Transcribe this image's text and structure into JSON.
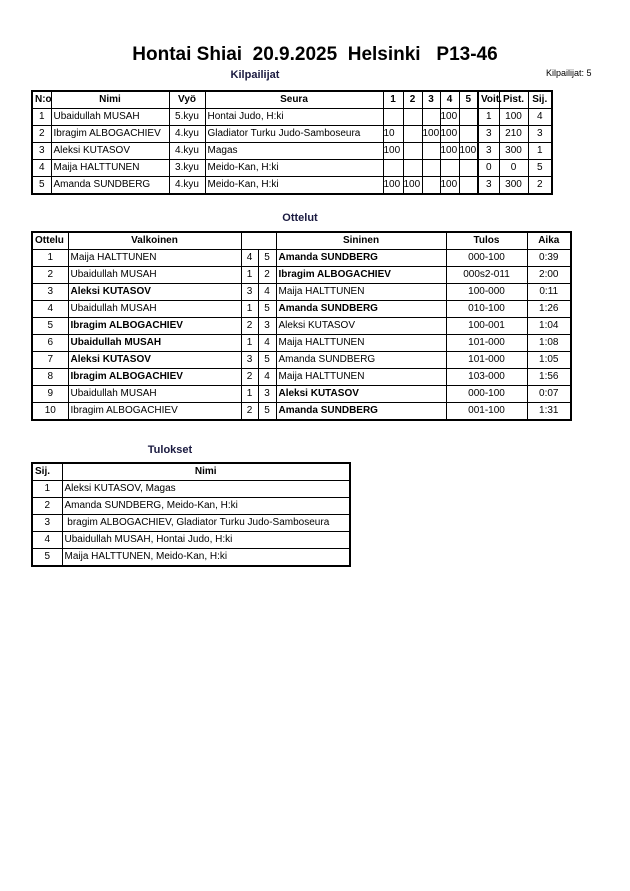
{
  "title": "Hontai Shiai  20.9.2025  Helsinki   P13-46",
  "competitors_section": {
    "heading": "Kilpailijat",
    "count_label": "Kilpailijat: 5",
    "columns": [
      "N:o",
      "Nimi",
      "Vyö",
      "Seura",
      "1",
      "2",
      "3",
      "4",
      "5",
      "Voit.",
      "Pist.",
      "Sij."
    ],
    "rows": [
      [
        "1",
        "Ubaidullah MUSAH",
        "5.kyu",
        "Hontai Judo, H:ki",
        "",
        "",
        "",
        "100",
        "",
        "1",
        "100",
        "4"
      ],
      [
        "2",
        "Ibragim ALBOGACHIEV",
        "4.kyu",
        "Gladiator Turku Judo-Samboseura",
        "10",
        "",
        "100",
        "100",
        "",
        "3",
        "210",
        "3"
      ],
      [
        "3",
        "Aleksi KUTASOV",
        "4.kyu",
        "Magas",
        "100",
        "",
        "",
        "100",
        "100",
        "3",
        "300",
        "1"
      ],
      [
        "4",
        "Maija HALTTUNEN",
        "3.kyu",
        "Meido-Kan, H:ki",
        "",
        "",
        "",
        "",
        "",
        "0",
        "0",
        "5"
      ],
      [
        "5",
        "Amanda SUNDBERG",
        "4.kyu",
        "Meido-Kan, H:ki",
        "100",
        "100",
        "",
        "100",
        "",
        "3",
        "300",
        "2"
      ]
    ]
  },
  "matches_section": {
    "heading": "Ottelut",
    "columns": [
      "Ottelu",
      "Valkoinen",
      "",
      "",
      "Sininen",
      "Tulos",
      "Aika"
    ],
    "rows": [
      {
        "no": "1",
        "white": "Maija HALTTUNEN",
        "wn": "4",
        "bn": "5",
        "blue": "Amanda SUNDBERG",
        "result": "000-100",
        "time": "0:39",
        "winner": "blue"
      },
      {
        "no": "2",
        "white": "Ubaidullah MUSAH",
        "wn": "1",
        "bn": "2",
        "blue": "Ibragim ALBOGACHIEV",
        "result": "000s2-011",
        "time": "2:00",
        "winner": "blue"
      },
      {
        "no": "3",
        "white": "Aleksi KUTASOV",
        "wn": "3",
        "bn": "4",
        "blue": "Maija HALTTUNEN",
        "result": "100-000",
        "time": "0:11",
        "winner": "white"
      },
      {
        "no": "4",
        "white": "Ubaidullah MUSAH",
        "wn": "1",
        "bn": "5",
        "blue": "Amanda SUNDBERG",
        "result": "010-100",
        "time": "1:26",
        "winner": "blue"
      },
      {
        "no": "5",
        "white": "Ibragim ALBOGACHIEV",
        "wn": "2",
        "bn": "3",
        "blue": "Aleksi KUTASOV",
        "result": "100-001",
        "time": "1:04",
        "winner": "white"
      },
      {
        "no": "6",
        "white": "Ubaidullah MUSAH",
        "wn": "1",
        "bn": "4",
        "blue": "Maija HALTTUNEN",
        "result": "101-000",
        "time": "1:08",
        "winner": "white"
      },
      {
        "no": "7",
        "white": "Aleksi KUTASOV",
        "wn": "3",
        "bn": "5",
        "blue": "Amanda SUNDBERG",
        "result": "101-000",
        "time": "1:05",
        "winner": "white"
      },
      {
        "no": "8",
        "white": "Ibragim ALBOGACHIEV",
        "wn": "2",
        "bn": "4",
        "blue": "Maija HALTTUNEN",
        "result": "103-000",
        "time": "1:56",
        "winner": "white"
      },
      {
        "no": "9",
        "white": "Ubaidullah MUSAH",
        "wn": "1",
        "bn": "3",
        "blue": "Aleksi KUTASOV",
        "result": "000-100",
        "time": "0:07",
        "winner": "blue"
      },
      {
        "no": "10",
        "white": "Ibragim ALBOGACHIEV",
        "wn": "2",
        "bn": "5",
        "blue": "Amanda SUNDBERG",
        "result": "001-100",
        "time": "1:31",
        "winner": "blue"
      }
    ]
  },
  "results_section": {
    "heading": "Tulokset",
    "columns": [
      "Sij.",
      "Nimi"
    ],
    "rows": [
      [
        "1",
        "Aleksi KUTASOV, Magas"
      ],
      [
        "2",
        "Amanda SUNDBERG, Meido-Kan, H:ki"
      ],
      [
        "3",
        " bragim ALBOGACHIEV, Gladiator Turku Judo-Samboseura"
      ],
      [
        "4",
        "Ubaidullah MUSAH, Hontai Judo, H:ki"
      ],
      [
        "5",
        "Maija HALTTUNEN, Meido-Kan, H:ki"
      ]
    ]
  }
}
